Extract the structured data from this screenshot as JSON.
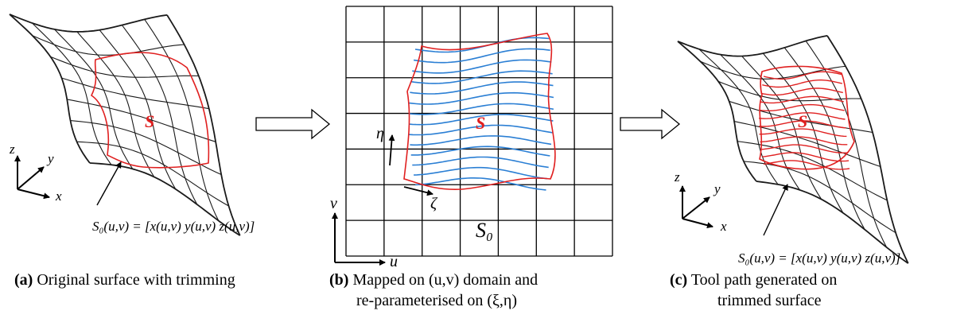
{
  "colors": {
    "trim": "#e02020",
    "path": "#2b7fd4",
    "mesh": "#1a1a1a",
    "grid": "#000000"
  },
  "panel_a": {
    "region_label": "S",
    "axis_z": "z",
    "axis_y": "y",
    "axis_x": "x",
    "equation": "S₀(u,v) = [x(u,v) y(u,v) z(u,v)]",
    "caption_bold": "(a)",
    "caption_text": " Original surface with trimming"
  },
  "panel_b": {
    "region_label": "S",
    "base_label": "S₀",
    "axis_u": "u",
    "axis_v": "v",
    "axis_eta": "η",
    "axis_zeta": "ζ",
    "caption_bold": "(b)",
    "caption_line1": " Mapped on (u,v) domain and",
    "caption_line2": "re-parameterised on (ξ,η)"
  },
  "panel_c": {
    "region_label": "S",
    "axis_z": "z",
    "axis_y": "y",
    "axis_x": "x",
    "equation": "S₀(u,v) = [x(u,v) y(u,v) z(u,v)]",
    "caption_bold": "(c)",
    "caption_line1": " Tool path generated on",
    "caption_line2": "trimmed surface"
  }
}
